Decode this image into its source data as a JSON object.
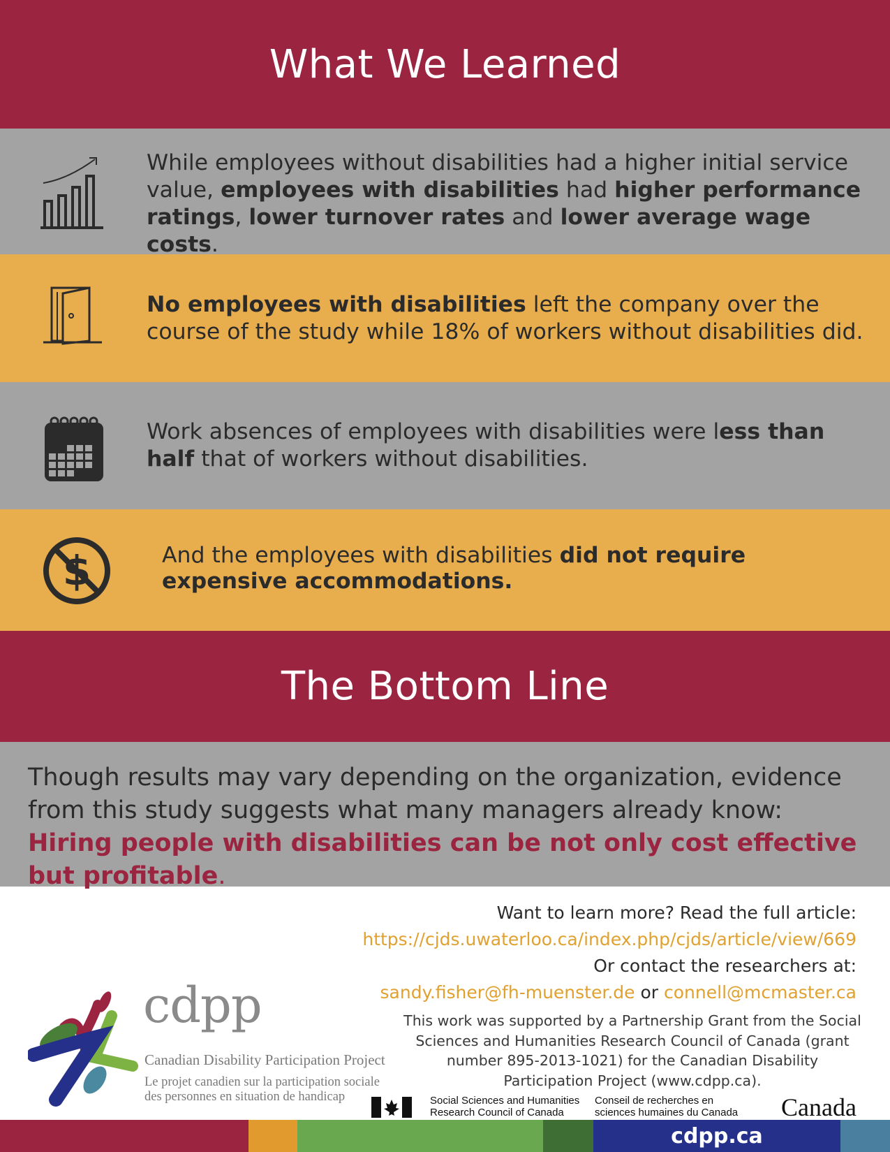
{
  "header": {
    "title": "What We Learned"
  },
  "findings": [
    {
      "icon": "bar-chart-growth-icon",
      "parts": [
        {
          "text": "While employees without disabilities had a higher initial service value, ",
          "bold": false
        },
        {
          "text": "employees with disabilities",
          "bold": true
        },
        {
          "text": " had ",
          "bold": false
        },
        {
          "text": "higher performance ratings",
          "bold": true
        },
        {
          "text": ", ",
          "bold": false
        },
        {
          "text": "lower turnover rates",
          "bold": true
        },
        {
          "text": " and ",
          "bold": false
        },
        {
          "text": "lower average wage costs",
          "bold": true
        },
        {
          "text": ".",
          "bold": false
        }
      ]
    },
    {
      "icon": "open-door-icon",
      "parts": [
        {
          "text": "No employees with disabilities",
          "bold": true
        },
        {
          "text": " left the company over the course of the study while 18% of workers without disabilities did.",
          "bold": false
        }
      ]
    },
    {
      "icon": "calendar-icon",
      "parts": [
        {
          "text": "Work absences of employees with disabilities were l",
          "bold": false
        },
        {
          "text": "ess than half",
          "bold": true
        },
        {
          "text": " that of workers without disabilities.",
          "bold": false
        }
      ]
    },
    {
      "icon": "no-dollar-icon",
      "parts": [
        {
          "text": "And the employees with disabilities ",
          "bold": false
        },
        {
          "text": "did not require expensive accommodations.",
          "bold": true
        }
      ]
    }
  ],
  "bottom_line": {
    "title": "The Bottom Line",
    "text": "Though results may vary depending on the organization, evidence from this study suggests what many managers already know: ",
    "highlight": "Hiring people with disabilities can be not only cost effective but profitable",
    "end": "."
  },
  "learn_more": {
    "prompt": "Want to learn more? Read the full article:",
    "url": "https://cjds.uwaterloo.ca/index.php/cjds/article/view/669",
    "contact_prompt": "Or contact the researchers at:",
    "email1": "sandy.fisher@fh-muenster.de",
    "or": "or",
    "email2": "connell@mcmaster.ca"
  },
  "support_note": "This work was supported by a Partnership Grant from the Social Sciences and Humanities Research Council of Canada (grant number 895-2013-1021) for the Canadian Disability Participation Project (www.cdpp.ca).",
  "logo": {
    "wordmark": "cdpp",
    "name_en": "Canadian Disability Participation Project",
    "name_fr_line1": "Le projet canadien sur la participation sociale",
    "name_fr_line2": "des personnes en situation de handicap"
  },
  "funder": {
    "en_line1": "Social Sciences and Humanities",
    "en_line2": "Research Council of Canada",
    "fr_line1": "Conseil de recherches en",
    "fr_line2": "sciences humaines du Canada",
    "canada_wordmark": "Canada"
  },
  "footer": {
    "site": "cdpp.ca"
  },
  "colors": {
    "maroon": "#9b2540",
    "gray": "#a3a3a3",
    "gold": "#e8ae4e",
    "link": "#e0a131"
  }
}
